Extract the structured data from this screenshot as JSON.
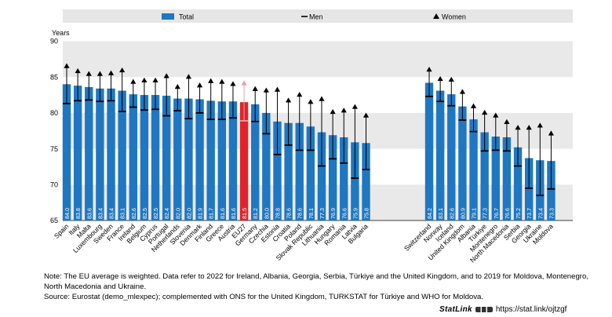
{
  "chart_data": {
    "type": "bar",
    "ylabel": "Years",
    "ylim": [
      65,
      90
    ],
    "yticks": [
      65,
      70,
      75,
      80,
      85,
      90
    ],
    "legend": [
      "Total",
      "Men",
      "Women"
    ],
    "groups": [
      {
        "categories": [
          "Spain",
          "Italy",
          "Malta",
          "Luxembourg",
          "Sweden",
          "France",
          "Ireland",
          "Belgium",
          "Cyprus",
          "Portugal",
          "Netherlands",
          "Slovenia",
          "Denmark",
          "Finland",
          "Greece",
          "Austria",
          "EU27",
          "Germany",
          "Czechia",
          "Estonia",
          "Croatia",
          "Poland",
          "Slovak Republic",
          "Lithuania",
          "Hungary",
          "Romania",
          "Latvia",
          "Bulgaria"
        ],
        "total": [
          84.0,
          83.8,
          83.6,
          83.4,
          83.4,
          83.1,
          82.6,
          82.5,
          82.5,
          82.4,
          82.0,
          82.0,
          81.9,
          81.7,
          81.6,
          81.6,
          81.5,
          81.2,
          80.0,
          78.8,
          78.6,
          78.6,
          78.1,
          77.3,
          76.9,
          76.6,
          75.9,
          75.8
        ],
        "men": [
          81.3,
          81.7,
          81.8,
          81.6,
          81.7,
          80.2,
          80.8,
          80.4,
          80.5,
          79.6,
          80.3,
          79.2,
          80.0,
          79.1,
          79.1,
          79.3,
          78.9,
          78.8,
          77.1,
          74.2,
          75.5,
          74.8,
          74.8,
          72.6,
          73.6,
          73.0,
          70.9,
          72.1
        ],
        "women": [
          86.5,
          85.8,
          85.4,
          85.4,
          85.5,
          85.9,
          84.3,
          84.5,
          84.5,
          85.1,
          83.6,
          85.0,
          83.8,
          84.4,
          84.3,
          84.0,
          84.1,
          83.3,
          83.1,
          83.2,
          81.7,
          82.5,
          81.5,
          81.9,
          80.1,
          80.3,
          80.8,
          79.6
        ]
      },
      {
        "categories": [
          "Switzerland",
          "Norway",
          "Iceland",
          "United Kingdom",
          "Albania",
          "Türkiye",
          "Montenegro",
          "North Macedonia",
          "Serbia",
          "Georgia",
          "Ukraine",
          "Moldova"
        ],
        "total": [
          84.2,
          83.1,
          82.6,
          80.9,
          79.1,
          77.3,
          76.7,
          76.6,
          75.2,
          73.7,
          73.4,
          73.3
        ],
        "men": [
          82.3,
          81.6,
          81.0,
          79.0,
          77.4,
          74.7,
          74.8,
          74.7,
          72.6,
          69.5,
          68.5,
          69.4
        ],
        "women": [
          86.0,
          84.7,
          84.6,
          82.9,
          80.9,
          80.0,
          79.6,
          78.7,
          77.9,
          77.9,
          78.2,
          77.1
        ]
      }
    ],
    "highlight": "EU27",
    "colors": {
      "bar": "#1f77c2",
      "highlight": "#e0232b",
      "highlight_marker": "#f19ca2",
      "grid_band": "#e9e9e9",
      "legend_band": "#e6e6e6"
    }
  },
  "notes": {
    "line1": "Note: The EU average is weighted. Data refer to 2022 for Ireland, Albania, Georgia, Serbia, Türkiye and the United Kingdom, and to 2019 for Moldova, Montenegro,",
    "line2": "North Macedonia and Ukraine.",
    "line3": "Source: Eurostat (demo_mlexpec); complemented with ONS for the United Kingdom, TURKSTAT for Türkiye and WHO for Moldova."
  },
  "statlink": {
    "brand": "StatLink",
    "url": "https://stat.link/ojtzgf"
  }
}
